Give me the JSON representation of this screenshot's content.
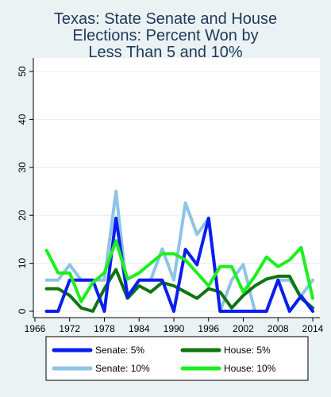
{
  "chart_data": {
    "type": "line",
    "title_lines": [
      "Texas: State Senate and House",
      "Elections: Percent Won by",
      "Less Than 5 and 10%"
    ],
    "xlabel": "",
    "ylabel": "",
    "xlim": [
      1966,
      2014
    ],
    "ylim": [
      0,
      50
    ],
    "x_ticks": [
      1966,
      1972,
      1978,
      1984,
      1990,
      1996,
      2002,
      2008,
      2014
    ],
    "y_ticks": [
      0,
      10,
      20,
      30,
      40,
      50
    ],
    "grid": true,
    "legend_position": "bottom",
    "series": [
      {
        "name": "Senate: 5%",
        "color": "#0a1ef0",
        "x": [
          1968,
          1970,
          1972,
          1974,
          1976,
          1978,
          1980,
          1982,
          1984,
          1986,
          1988,
          1990,
          1992,
          1994,
          1996,
          1998,
          2000,
          2002,
          2004,
          2006,
          2008,
          2010,
          2012,
          2014
        ],
        "values": [
          0,
          0,
          6.5,
          6.5,
          6.5,
          0,
          19.4,
          3,
          6.5,
          6.5,
          6.5,
          0,
          12.9,
          9.7,
          19.4,
          0,
          0,
          0,
          0,
          0,
          6.5,
          0,
          3.2,
          0
        ]
      },
      {
        "name": "House: 5%",
        "color": "#107410",
        "x": [
          1968,
          1970,
          1972,
          1974,
          1976,
          1978,
          1980,
          1982,
          1984,
          1986,
          1988,
          1990,
          1992,
          1994,
          1996,
          1998,
          2000,
          2002,
          2004,
          2006,
          2008,
          2010,
          2012,
          2014
        ],
        "values": [
          4.7,
          4.7,
          3.3,
          0.7,
          0,
          4.7,
          8.7,
          2.7,
          5.3,
          4,
          6,
          5.3,
          4,
          2.7,
          4.7,
          4,
          0.7,
          3.3,
          5.3,
          6.7,
          7.3,
          7.3,
          2.7,
          0.7
        ]
      },
      {
        "name": "Senate: 10%",
        "color": "#8ec4e6",
        "x": [
          1968,
          1970,
          1972,
          1974,
          1976,
          1978,
          1980,
          1982,
          1984,
          1986,
          1988,
          1990,
          1992,
          1994,
          1996,
          1998,
          2000,
          2002,
          2004,
          2006,
          2008,
          2010,
          2012,
          2014
        ],
        "values": [
          6.5,
          6.5,
          9.7,
          6.5,
          6.5,
          6.5,
          25,
          3.2,
          6.5,
          6.5,
          13,
          6.5,
          22.6,
          16,
          19.4,
          0,
          6.5,
          9.7,
          0,
          0,
          6.5,
          6.5,
          3.2,
          6.5
        ]
      },
      {
        "name": "House: 10%",
        "color": "#1cf01c",
        "x": [
          1968,
          1970,
          1972,
          1974,
          1976,
          1978,
          1980,
          1982,
          1984,
          1986,
          1988,
          1990,
          1992,
          1994,
          1996,
          1998,
          2000,
          2002,
          2004,
          2006,
          2008,
          2010,
          2012,
          2014
        ],
        "values": [
          12.7,
          8,
          8,
          2,
          6,
          8,
          14.7,
          6.7,
          8,
          10,
          12,
          12,
          10.7,
          8,
          5.3,
          9.3,
          9.3,
          4,
          7.3,
          11.3,
          9.3,
          10.7,
          13.3,
          2.7
        ]
      }
    ],
    "legend_order": [
      0,
      1,
      2,
      3
    ]
  }
}
